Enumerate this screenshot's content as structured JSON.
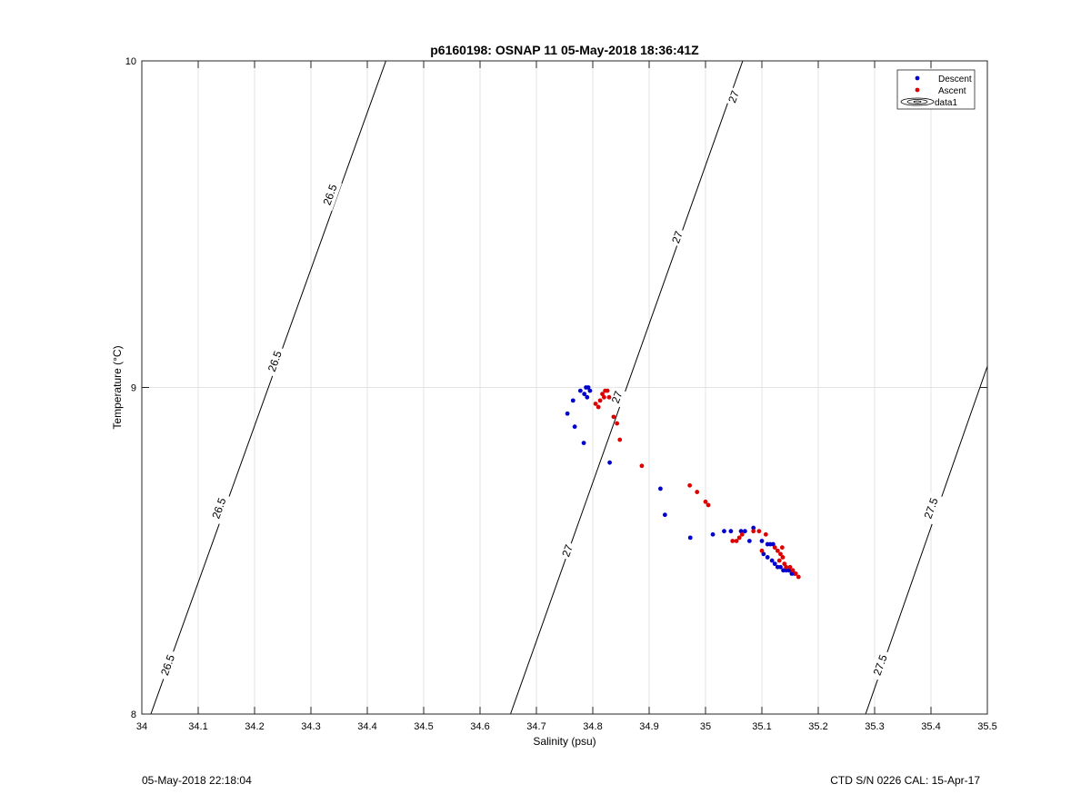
{
  "chart_data": {
    "type": "scatter",
    "title": "p6160198: OSNAP 11 05-May-2018 18:36:41Z",
    "xlabel": "Salinity (psu)",
    "ylabel": "Temperature (°C)",
    "xlim": [
      34,
      35.5
    ],
    "ylim": [
      8,
      10
    ],
    "xticks": [
      34,
      34.1,
      34.2,
      34.3,
      34.4,
      34.5,
      34.6,
      34.7,
      34.8,
      34.9,
      35,
      35.1,
      35.2,
      35.3,
      35.4,
      35.5
    ],
    "xtick_labels": [
      "34",
      "34.1",
      "34.2",
      "34.3",
      "34.4",
      "34.5",
      "34.6",
      "34.7",
      "34.8",
      "34.9",
      "35",
      "35.1",
      "35.2",
      "35.3",
      "35.4",
      "35.5"
    ],
    "yticks": [
      8,
      9,
      10
    ],
    "ytick_labels": [
      "8",
      "9",
      "10"
    ],
    "grid": true,
    "legend_position": "top-right",
    "legend": [
      "Descent",
      "Ascent",
      "data1"
    ],
    "colors": {
      "descent": "#0000cc",
      "ascent": "#dd0000",
      "contour": "#000000",
      "grid": "#e3e3e3"
    },
    "series": [
      {
        "name": "Descent",
        "color": "#0000cc",
        "points": [
          [
            34.755,
            8.92
          ],
          [
            34.765,
            8.96
          ],
          [
            34.768,
            8.88
          ],
          [
            34.778,
            8.99
          ],
          [
            34.785,
            8.98
          ],
          [
            34.788,
            9.0
          ],
          [
            34.792,
            9.0
          ],
          [
            34.795,
            8.99
          ],
          [
            34.79,
            8.97
          ],
          [
            34.784,
            8.83
          ],
          [
            34.83,
            8.77
          ],
          [
            34.92,
            8.69
          ],
          [
            34.928,
            8.61
          ],
          [
            34.973,
            8.54
          ],
          [
            35.013,
            8.55
          ],
          [
            35.033,
            8.56
          ],
          [
            35.045,
            8.56
          ],
          [
            35.063,
            8.56
          ],
          [
            35.07,
            8.56
          ],
          [
            35.078,
            8.53
          ],
          [
            35.085,
            8.57
          ],
          [
            35.1,
            8.53
          ],
          [
            35.103,
            8.49
          ],
          [
            35.11,
            8.52
          ],
          [
            35.115,
            8.52
          ],
          [
            35.12,
            8.52
          ],
          [
            35.11,
            8.48
          ],
          [
            35.118,
            8.47
          ],
          [
            35.123,
            8.46
          ],
          [
            35.128,
            8.45
          ],
          [
            35.133,
            8.45
          ],
          [
            35.138,
            8.44
          ],
          [
            35.143,
            8.44
          ],
          [
            35.148,
            8.44
          ],
          [
            35.153,
            8.43
          ],
          [
            35.158,
            8.43
          ]
        ]
      },
      {
        "name": "Ascent",
        "color": "#dd0000",
        "points": [
          [
            34.805,
            8.95
          ],
          [
            34.81,
            8.94
          ],
          [
            34.813,
            8.96
          ],
          [
            34.817,
            8.98
          ],
          [
            34.822,
            8.99
          ],
          [
            34.826,
            8.99
          ],
          [
            34.829,
            8.97
          ],
          [
            34.82,
            8.97
          ],
          [
            34.837,
            8.91
          ],
          [
            34.843,
            8.89
          ],
          [
            34.848,
            8.84
          ],
          [
            34.887,
            8.76
          ],
          [
            34.972,
            8.7
          ],
          [
            34.985,
            8.68
          ],
          [
            35.0,
            8.65
          ],
          [
            35.005,
            8.64
          ],
          [
            35.048,
            8.53
          ],
          [
            35.055,
            8.53
          ],
          [
            35.06,
            8.54
          ],
          [
            35.065,
            8.55
          ],
          [
            35.085,
            8.56
          ],
          [
            35.095,
            8.56
          ],
          [
            35.1,
            8.5
          ],
          [
            35.107,
            8.55
          ],
          [
            35.123,
            8.51
          ],
          [
            35.128,
            8.5
          ],
          [
            35.133,
            8.49
          ],
          [
            35.136,
            8.51
          ],
          [
            35.131,
            8.47
          ],
          [
            35.137,
            8.48
          ],
          [
            35.14,
            8.46
          ],
          [
            35.143,
            8.45
          ],
          [
            35.15,
            8.45
          ],
          [
            35.155,
            8.44
          ],
          [
            35.16,
            8.43
          ],
          [
            35.165,
            8.42
          ]
        ]
      }
    ],
    "isopycnals": [
      {
        "label": "26.5",
        "points": [
          [
            34.016,
            8.0
          ],
          [
            34.433,
            10.0
          ]
        ]
      },
      {
        "label": "27",
        "points": [
          [
            34.654,
            8.0
          ],
          [
            35.066,
            10.0
          ]
        ]
      },
      {
        "label": "27.5",
        "points": [
          [
            35.284,
            8.0
          ],
          [
            35.5,
            9.065
          ]
        ]
      }
    ],
    "contour_labels": [
      {
        "text": "26.5",
        "x": 34.046,
        "y": 8.15
      },
      {
        "text": "26.5",
        "x": 34.137,
        "y": 8.63
      },
      {
        "text": "26.5",
        "x": 34.236,
        "y": 9.08
      },
      {
        "text": "26.5",
        "x": 34.334,
        "y": 9.59
      },
      {
        "text": "27",
        "x": 34.755,
        "y": 8.5
      },
      {
        "text": "27",
        "x": 34.843,
        "y": 8.97
      },
      {
        "text": "27",
        "x": 34.95,
        "y": 9.46
      },
      {
        "text": "27",
        "x": 35.05,
        "y": 9.89
      },
      {
        "text": "27.5",
        "x": 35.31,
        "y": 8.15
      },
      {
        "text": "27.5",
        "x": 35.4,
        "y": 8.63
      }
    ]
  },
  "footer": {
    "left": "05-May-2018 22:18:04",
    "right": "CTD S/N 0226  CAL: 15-Apr-17"
  }
}
